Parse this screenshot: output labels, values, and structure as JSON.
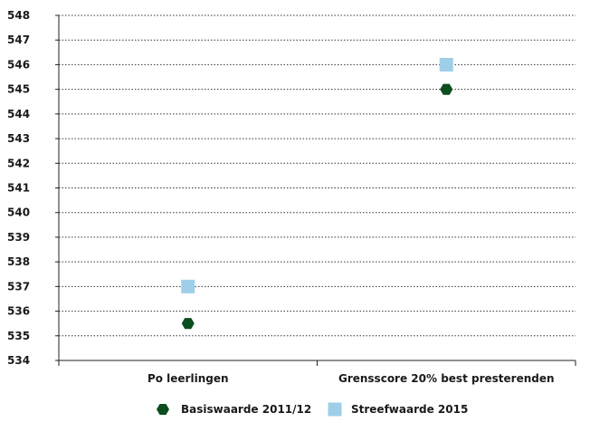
{
  "chart_data": {
    "type": "scatter",
    "categories": [
      "Po leerlingen",
      "Grensscore 20% best presterenden"
    ],
    "ylim": [
      534,
      548
    ],
    "yticks": [
      534,
      535,
      536,
      537,
      538,
      539,
      540,
      541,
      542,
      543,
      544,
      545,
      546,
      547,
      548
    ],
    "grid": true,
    "legend_position": "bottom",
    "series": [
      {
        "name": "Basiswaarde 2011/12",
        "marker": "hexagon",
        "color": "#0b4d1e",
        "values": [
          535.5,
          545
        ]
      },
      {
        "name": "Streefwaarde 2015",
        "marker": "square",
        "color": "#9fcfe8",
        "values": [
          537,
          546
        ]
      }
    ]
  }
}
